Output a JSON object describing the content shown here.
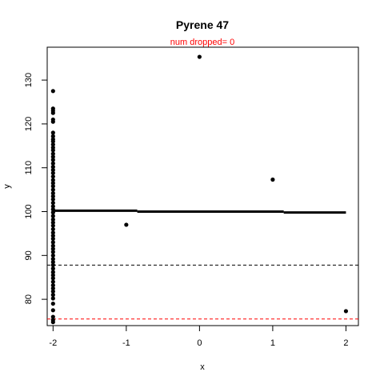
{
  "chart_data": {
    "type": "scatter",
    "title": "Pyrene 47",
    "subtitle": "num dropped= 0",
    "subtitle_color": "#ff0000",
    "xlabel": "x",
    "ylabel": "y",
    "xlim": [
      -2.08,
      2.17
    ],
    "ylim": [
      74.0,
      137.5
    ],
    "xticks": [
      -2,
      -1,
      0,
      1,
      2
    ],
    "xtick_labels": [
      "-2",
      "-1",
      "0",
      "1",
      "2"
    ],
    "yticks": [
      80,
      90,
      100,
      110,
      120,
      130
    ],
    "ytick_labels": [
      "80",
      "90",
      "100",
      "110",
      "120",
      "130"
    ],
    "grid": false,
    "point_color": "#000000",
    "points": [
      {
        "x": -2,
        "y": 127.5
      },
      {
        "x": -2,
        "y": 123.5
      },
      {
        "x": -2,
        "y": 123.0
      },
      {
        "x": -2,
        "y": 122.5
      },
      {
        "x": -2,
        "y": 121.0
      },
      {
        "x": -2,
        "y": 120.5
      },
      {
        "x": -2,
        "y": 118.0
      },
      {
        "x": -2,
        "y": 117.2
      },
      {
        "x": -2,
        "y": 116.5
      },
      {
        "x": -2,
        "y": 116.0
      },
      {
        "x": -2,
        "y": 115.3
      },
      {
        "x": -2,
        "y": 114.6
      },
      {
        "x": -2,
        "y": 114.0
      },
      {
        "x": -2,
        "y": 113.2
      },
      {
        "x": -2,
        "y": 112.5
      },
      {
        "x": -2,
        "y": 111.8
      },
      {
        "x": -2,
        "y": 111.0
      },
      {
        "x": -2,
        "y": 110.2
      },
      {
        "x": -2,
        "y": 109.5
      },
      {
        "x": -2,
        "y": 108.8
      },
      {
        "x": -2,
        "y": 108.0
      },
      {
        "x": -2,
        "y": 107.2
      },
      {
        "x": -2,
        "y": 106.5
      },
      {
        "x": -2,
        "y": 105.8
      },
      {
        "x": -2,
        "y": 105.0
      },
      {
        "x": -2,
        "y": 104.2
      },
      {
        "x": -2,
        "y": 103.5
      },
      {
        "x": -2,
        "y": 102.8
      },
      {
        "x": -2,
        "y": 102.0
      },
      {
        "x": -2,
        "y": 101.2
      },
      {
        "x": -2,
        "y": 100.5
      },
      {
        "x": -2,
        "y": 99.8
      },
      {
        "x": -2,
        "y": 99.0
      },
      {
        "x": -2,
        "y": 98.2
      },
      {
        "x": -2,
        "y": 97.5
      },
      {
        "x": -2,
        "y": 96.8
      },
      {
        "x": -2,
        "y": 96.0
      },
      {
        "x": -2,
        "y": 95.2
      },
      {
        "x": -2,
        "y": 94.5
      },
      {
        "x": -2,
        "y": 93.8
      },
      {
        "x": -2,
        "y": 93.0
      },
      {
        "x": -2,
        "y": 92.2
      },
      {
        "x": -2,
        "y": 91.5
      },
      {
        "x": -2,
        "y": 90.8
      },
      {
        "x": -2,
        "y": 90.0
      },
      {
        "x": -2,
        "y": 89.2
      },
      {
        "x": -2,
        "y": 88.5
      },
      {
        "x": -2,
        "y": 87.8
      },
      {
        "x": -2,
        "y": 87.0
      },
      {
        "x": -2,
        "y": 86.2
      },
      {
        "x": -2,
        "y": 85.5
      },
      {
        "x": -2,
        "y": 84.8
      },
      {
        "x": -2,
        "y": 84.0
      },
      {
        "x": -2,
        "y": 83.2
      },
      {
        "x": -2,
        "y": 82.5
      },
      {
        "x": -2,
        "y": 81.8
      },
      {
        "x": -2,
        "y": 81.0
      },
      {
        "x": -2,
        "y": 80.2
      },
      {
        "x": -2,
        "y": 79.0
      },
      {
        "x": -2,
        "y": 77.5
      },
      {
        "x": -2,
        "y": 76.0
      },
      {
        "x": -2,
        "y": 75.3
      },
      {
        "x": -2,
        "y": 74.8
      },
      {
        "x": -1,
        "y": 97.0
      },
      {
        "x": 0,
        "y": 135.3
      },
      {
        "x": 1,
        "y": 107.3
      },
      {
        "x": 2,
        "y": 77.3
      }
    ],
    "fit_line": {
      "color": "#000000",
      "segments": [
        {
          "x": [
            -2.0,
            -0.85
          ],
          "y": [
            100.2,
            100.2
          ]
        },
        {
          "x": [
            -0.85,
            1.15
          ],
          "y": [
            100.0,
            100.0
          ]
        },
        {
          "x": [
            1.15,
            2.0
          ],
          "y": [
            99.8,
            99.8
          ]
        }
      ]
    },
    "reference_lines": [
      {
        "y": 87.8,
        "color": "#000000",
        "style": "dashed"
      },
      {
        "y": 75.5,
        "color": "#ff0000",
        "style": "dashed"
      }
    ]
  }
}
